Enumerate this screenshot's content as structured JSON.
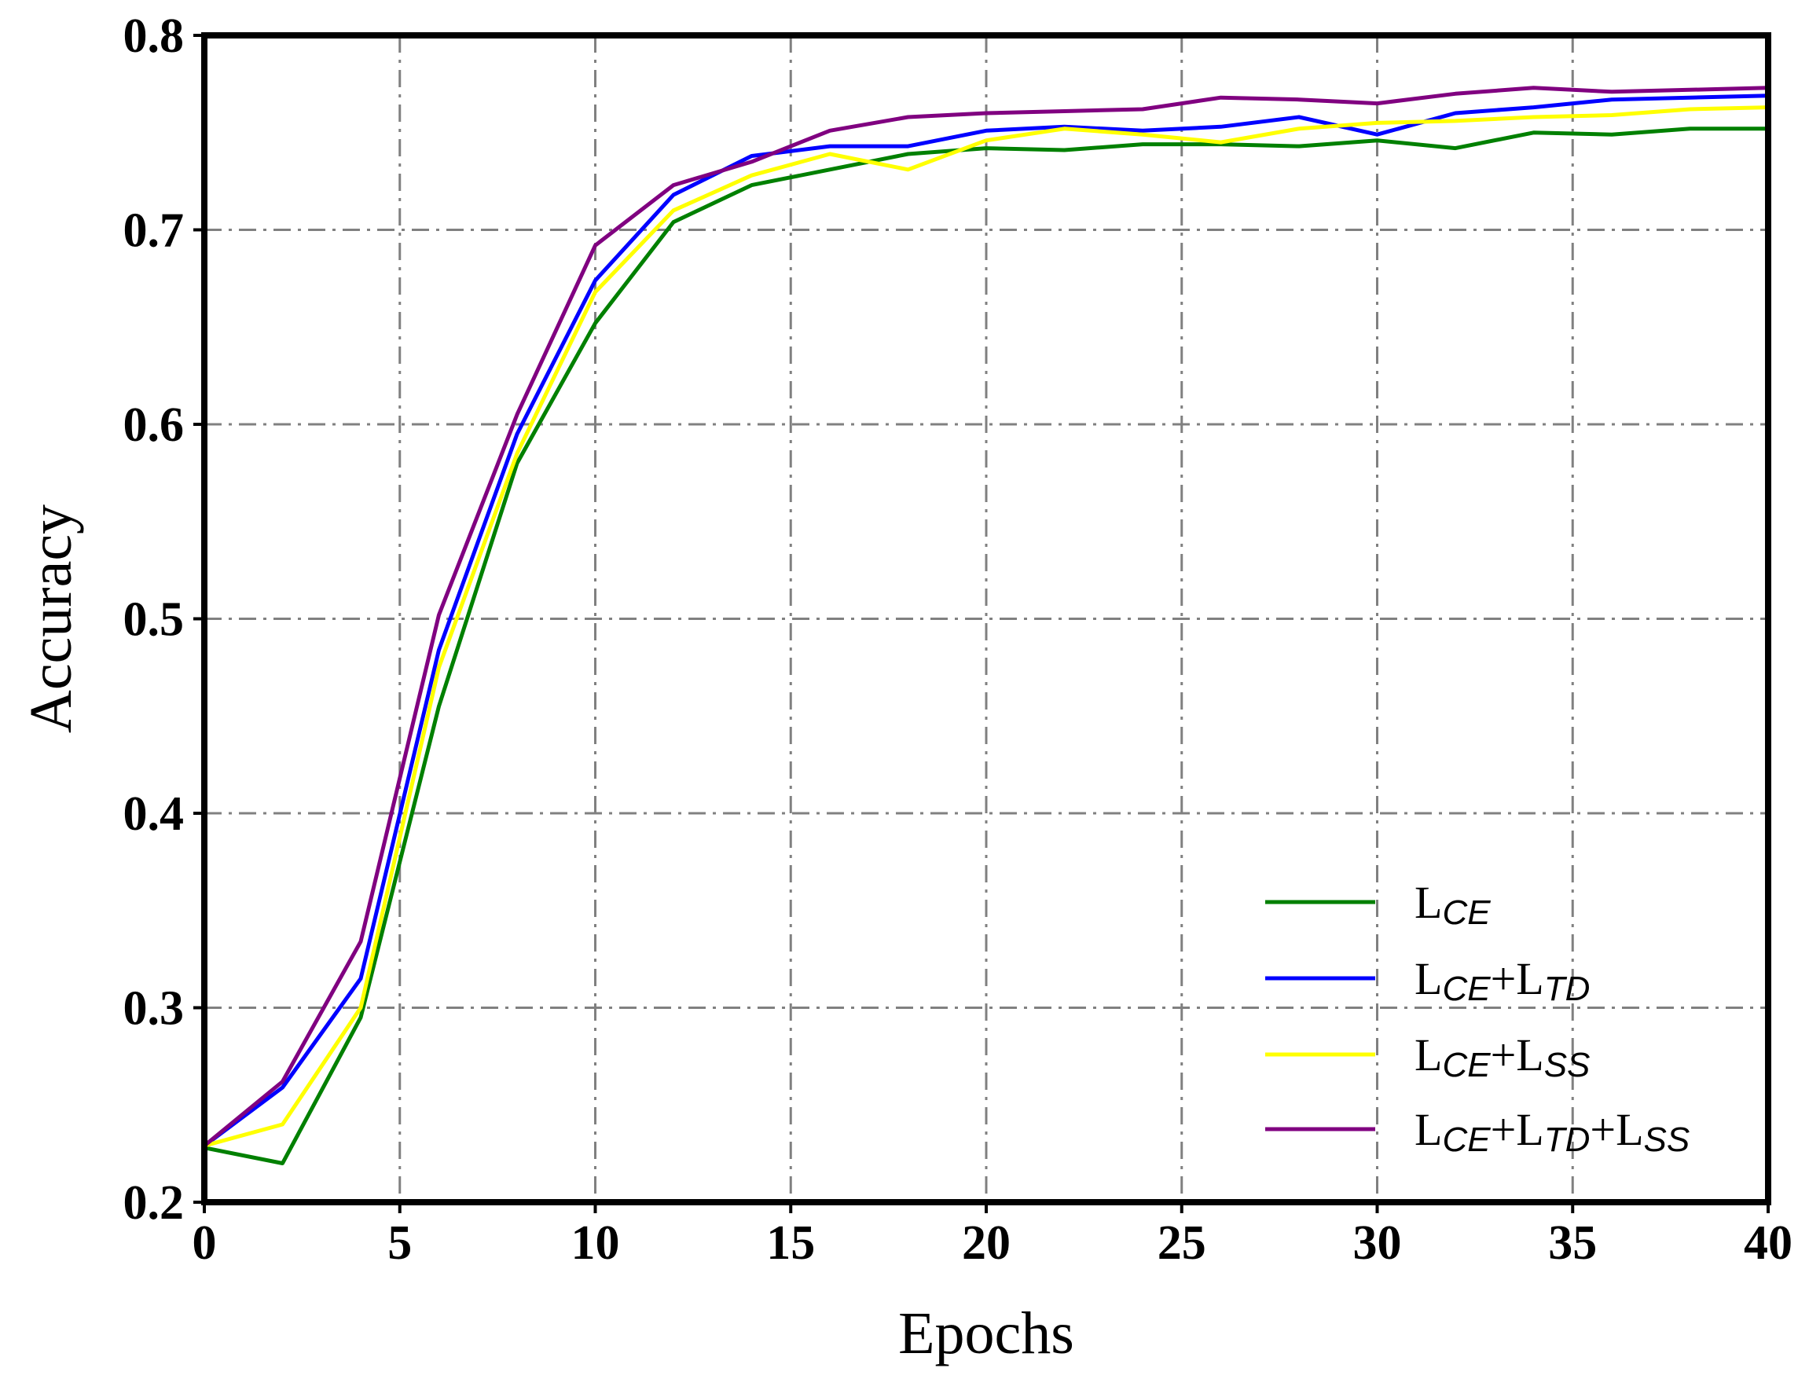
{
  "chart_data": {
    "type": "line",
    "title": "",
    "xlabel": "Epochs",
    "ylabel": "Accuracy",
    "xlim": [
      0,
      40
    ],
    "ylim": [
      0.2,
      0.8
    ],
    "xticks": [
      0,
      5,
      10,
      15,
      20,
      25,
      30,
      35,
      40
    ],
    "yticks": [
      0.2,
      0.3,
      0.4,
      0.5,
      0.6,
      0.7,
      0.8
    ],
    "xtick_labels": [
      "0",
      "5",
      "10",
      "15",
      "20",
      "25",
      "30",
      "35",
      "40"
    ],
    "ytick_labels": [
      "0.2",
      "0.3",
      "0.4",
      "0.5",
      "0.6",
      "0.7",
      "0.8"
    ],
    "grid": true,
    "legend_position": "bottom-right",
    "x": [
      0,
      2,
      4,
      6,
      8,
      10,
      12,
      14,
      16,
      18,
      20,
      22,
      24,
      26,
      28,
      30,
      32,
      34,
      36,
      38,
      40
    ],
    "series": [
      {
        "name": "LCE",
        "legend": {
          "parts": [
            {
              "t": "L",
              "sub": false
            },
            {
              "t": "CE",
              "sub": true
            }
          ]
        },
        "color": "#008000",
        "values": [
          0.228,
          0.22,
          0.295,
          0.455,
          0.58,
          0.652,
          0.704,
          0.723,
          0.731,
          0.739,
          0.742,
          0.741,
          0.744,
          0.744,
          0.743,
          0.746,
          0.742,
          0.75,
          0.749,
          0.752,
          0.752
        ]
      },
      {
        "name": "LCE+LTD",
        "legend": {
          "parts": [
            {
              "t": "L",
              "sub": false
            },
            {
              "t": "CE",
              "sub": true
            },
            {
              "t": "+L",
              "sub": false
            },
            {
              "t": "TD",
              "sub": true
            }
          ]
        },
        "color": "#0000ff",
        "values": [
          0.229,
          0.259,
          0.315,
          0.484,
          0.595,
          0.674,
          0.718,
          0.738,
          0.743,
          0.743,
          0.751,
          0.753,
          0.751,
          0.753,
          0.758,
          0.749,
          0.76,
          0.763,
          0.767,
          0.768,
          0.769
        ]
      },
      {
        "name": "LCE+LSS",
        "legend": {
          "parts": [
            {
              "t": "L",
              "sub": false
            },
            {
              "t": "CE",
              "sub": true
            },
            {
              "t": "+L",
              "sub": false
            },
            {
              "t": "SS",
              "sub": true
            }
          ]
        },
        "color": "#ffff00",
        "values": [
          0.229,
          0.24,
          0.3,
          0.475,
          0.585,
          0.668,
          0.71,
          0.728,
          0.739,
          0.731,
          0.746,
          0.752,
          0.749,
          0.745,
          0.752,
          0.755,
          0.756,
          0.758,
          0.759,
          0.762,
          0.763
        ]
      },
      {
        "name": "LCE+LTD+LSS",
        "legend": {
          "parts": [
            {
              "t": "L",
              "sub": false
            },
            {
              "t": "CE",
              "sub": true
            },
            {
              "t": "+L",
              "sub": false
            },
            {
              "t": "TD",
              "sub": true
            },
            {
              "t": "+L",
              "sub": false
            },
            {
              "t": "SS",
              "sub": true
            }
          ]
        },
        "color": "#800080",
        "values": [
          0.229,
          0.262,
          0.334,
          0.502,
          0.605,
          0.692,
          0.723,
          0.735,
          0.751,
          0.758,
          0.76,
          0.761,
          0.762,
          0.768,
          0.767,
          0.765,
          0.77,
          0.773,
          0.771,
          0.772,
          0.773
        ]
      }
    ]
  }
}
